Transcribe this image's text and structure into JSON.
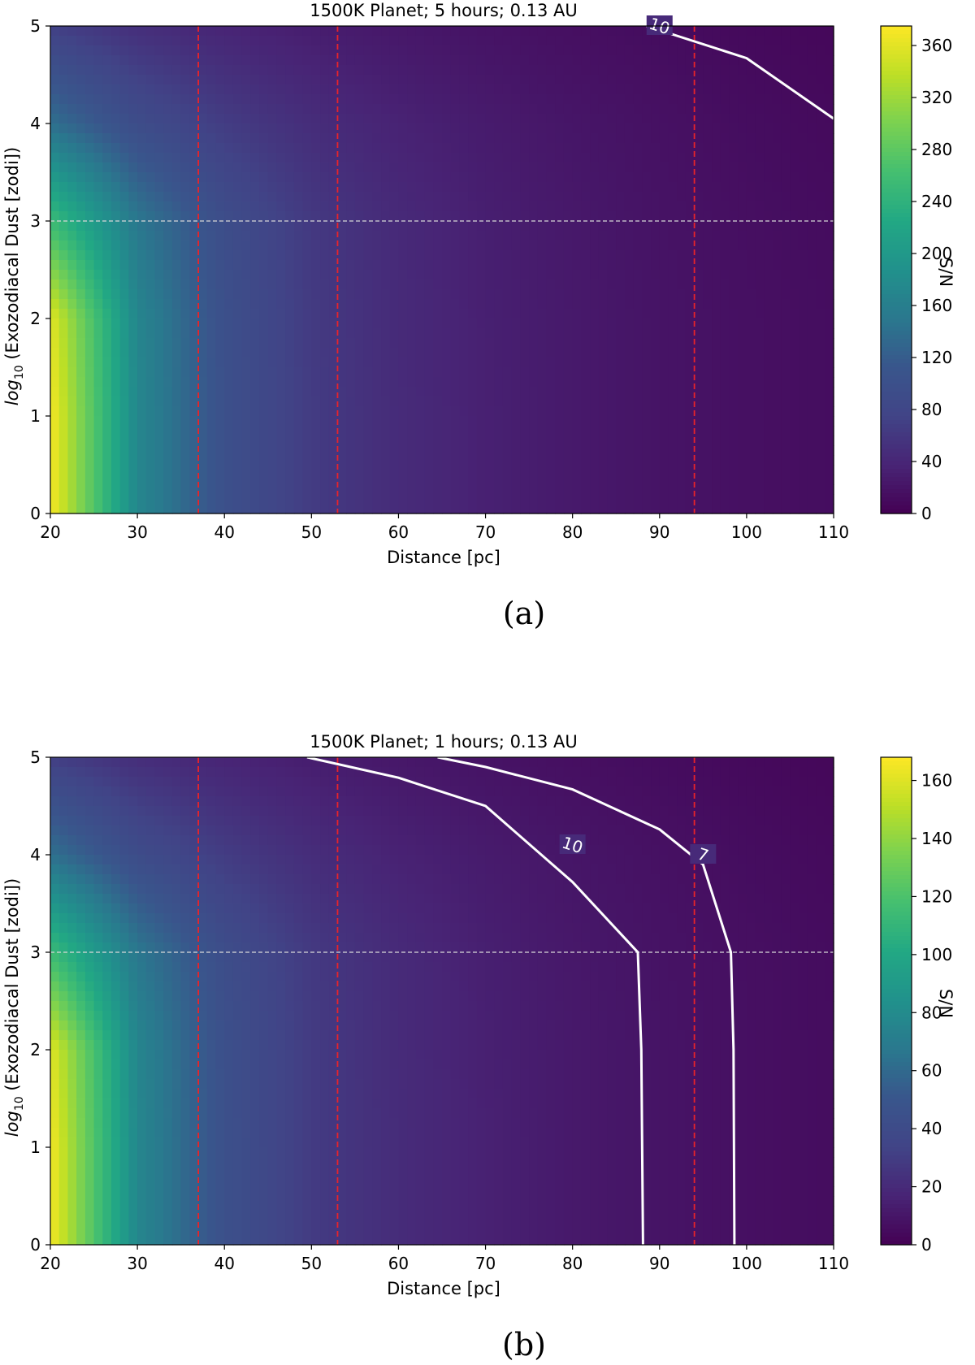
{
  "chart_data": [
    {
      "type": "heatmap",
      "title": "1500K Planet; 5 hours; 0.13 AU",
      "xlabel": "Distance [pc]",
      "ylabel_main": "log",
      "ylabel_sub": "10",
      "ylabel_rest": " (Exozodiacal Dust [zodi])",
      "colorbar_label": "S/N",
      "caption": "(a)",
      "xlim": [
        20,
        110
      ],
      "ylim": [
        0,
        5
      ],
      "xticks": [
        20,
        30,
        40,
        50,
        60,
        70,
        80,
        90,
        100,
        110
      ],
      "yticks": [
        0,
        1,
        2,
        3,
        4,
        5
      ],
      "x": [
        20,
        30,
        40,
        50,
        60,
        70,
        80,
        90,
        100,
        110
      ],
      "y": [
        0,
        1,
        2,
        3,
        4,
        5
      ],
      "z": [
        [
          372,
          172,
          100,
          65,
          46,
          34,
          26,
          20,
          16,
          13
        ],
        [
          372,
          172,
          100,
          65,
          46,
          34,
          26,
          20,
          16,
          13
        ],
        [
          360,
          170,
          99,
          64,
          45,
          33,
          26,
          20,
          16,
          13
        ],
        [
          255,
          150,
          94,
          62,
          44,
          32,
          25,
          19,
          15,
          12
        ],
        [
          140,
          92,
          66,
          48,
          36,
          28,
          22,
          17,
          13,
          10
        ],
        [
          70,
          50,
          38,
          30,
          24,
          19,
          15,
          12,
          9,
          7
        ]
      ],
      "colorbar": {
        "min": 0,
        "max": 375,
        "ticks": [
          0,
          40,
          80,
          120,
          160,
          200,
          240,
          280,
          320,
          360
        ]
      },
      "vlines": [
        37,
        53,
        94
      ],
      "hline": 3,
      "contours": [
        {
          "label": "10",
          "points": [
            [
              88.5,
              5.0
            ],
            [
              100,
              4.67
            ],
            [
              110,
              4.05
            ]
          ],
          "label_at": [
            90,
            5.0
          ]
        }
      ]
    },
    {
      "type": "heatmap",
      "title": "1500K Planet; 1 hours; 0.13 AU",
      "xlabel": "Distance [pc]",
      "ylabel_main": "log",
      "ylabel_sub": "10",
      "ylabel_rest": " (Exozodiacal Dust [zodi])",
      "colorbar_label": "S/N",
      "caption": "(b)",
      "xlim": [
        20,
        110
      ],
      "ylim": [
        0,
        5
      ],
      "xticks": [
        20,
        30,
        40,
        50,
        60,
        70,
        80,
        90,
        100,
        110
      ],
      "yticks": [
        0,
        1,
        2,
        3,
        4,
        5
      ],
      "x": [
        20,
        30,
        40,
        50,
        60,
        70,
        80,
        90,
        100,
        110
      ],
      "y": [
        0,
        1,
        2,
        3,
        4,
        5
      ],
      "z": [
        [
          166,
          77,
          45,
          29,
          21,
          15.5,
          11.5,
          9,
          7,
          5.5
        ],
        [
          166,
          77,
          45,
          29,
          21,
          15.5,
          11.5,
          9,
          7,
          5.5
        ],
        [
          161,
          76,
          44.5,
          29,
          20.5,
          15,
          11.5,
          9,
          7,
          5.5
        ],
        [
          114,
          67,
          42,
          28,
          20,
          14.5,
          11,
          8.5,
          6.8,
          5.4
        ],
        [
          63,
          41,
          29.5,
          21.5,
          16,
          12.5,
          9.8,
          7.6,
          5.8,
          4.5
        ],
        [
          31,
          22,
          17,
          13.5,
          10.7,
          8.5,
          6.7,
          5.3,
          4,
          3
        ]
      ],
      "colorbar": {
        "min": 0,
        "max": 168,
        "ticks": [
          0,
          20,
          40,
          60,
          80,
          100,
          120,
          140,
          160
        ]
      },
      "vlines": [
        37,
        53,
        94
      ],
      "hline": 3,
      "contours": [
        {
          "label": "10",
          "points": [
            [
              49.5,
              5.0
            ],
            [
              60,
              4.79
            ],
            [
              70,
              4.5
            ],
            [
              80,
              3.72
            ],
            [
              87.5,
              3.0
            ],
            [
              87.9,
              2.0
            ],
            [
              88.1,
              0
            ]
          ],
          "label_at": [
            80,
            4.1
          ]
        },
        {
          "label": "7",
          "points": [
            [
              64.5,
              5.0
            ],
            [
              70,
              4.9
            ],
            [
              80,
              4.67
            ],
            [
              90,
              4.26
            ],
            [
              95,
              3.9
            ],
            [
              98.2,
              3.0
            ],
            [
              98.5,
              2.0
            ],
            [
              98.6,
              0
            ]
          ],
          "label_at": [
            95,
            4.0
          ]
        }
      ]
    }
  ]
}
